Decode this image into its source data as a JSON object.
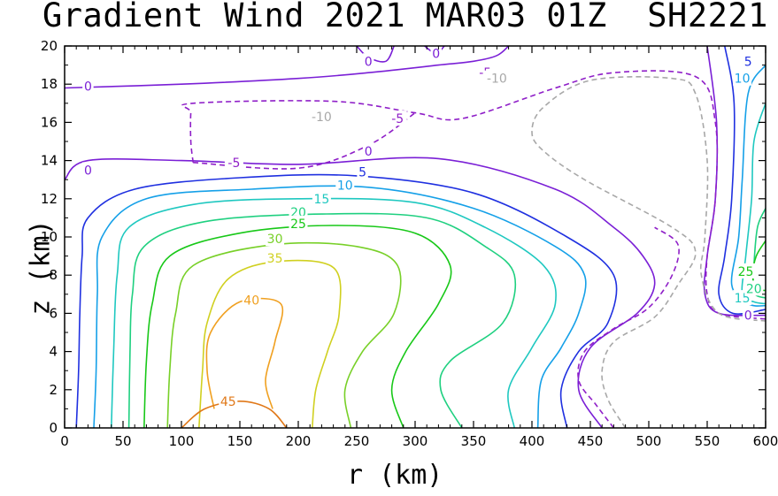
{
  "title": "Gradient Wind 2021 MAR03 01Z  SH2221",
  "chart_data": {
    "type": "contour",
    "title": "Gradient Wind 2021 MAR03 01Z  SH2221",
    "xlabel": "r (km)",
    "ylabel": "z (km)",
    "xlim": [
      0,
      600
    ],
    "ylim": [
      0,
      20
    ],
    "xticks": [
      "0",
      "50",
      "100",
      "150",
      "200",
      "250",
      "300",
      "350",
      "400",
      "450",
      "500",
      "550",
      "600"
    ],
    "yticks": [
      "0",
      "2",
      "4",
      "6",
      "8",
      "10",
      "12",
      "14",
      "16",
      "18",
      "20"
    ],
    "contours": [
      {
        "level": "0",
        "color": "#7a1fd6",
        "dashed": false,
        "points": [
          [
            0,
            13
          ],
          [
            20,
            14
          ],
          [
            100,
            14
          ],
          [
            200,
            13.8
          ],
          [
            320,
            14.1
          ],
          [
            420,
            12.5
          ],
          [
            470,
            10.5
          ],
          [
            495,
            9
          ],
          [
            505,
            7.5
          ],
          [
            490,
            6
          ],
          [
            450,
            4.2
          ],
          [
            440,
            2
          ],
          [
            460,
            0
          ]
        ]
      },
      {
        "level": "0",
        "color": "#7a1fd6",
        "dashed": false,
        "points": [
          [
            0,
            17.8
          ],
          [
            100,
            18
          ],
          [
            200,
            18.3
          ],
          [
            260,
            18.6
          ],
          [
            320,
            19
          ],
          [
            350,
            19.2
          ],
          [
            370,
            19.5
          ],
          [
            380,
            20
          ]
        ]
      },
      {
        "level": "0",
        "color": "#7a1fd6",
        "dashed": false,
        "points": [
          [
            550,
            20
          ],
          [
            558,
            16
          ],
          [
            557,
            12
          ],
          [
            550,
            9
          ],
          [
            548,
            7
          ],
          [
            560,
            6
          ],
          [
            600,
            5.9
          ]
        ]
      },
      {
        "level": "0",
        "color": "#7a1fd6",
        "dashed": false,
        "points": [
          [
            250,
            20
          ],
          [
            260,
            19.4
          ],
          [
            275,
            19.2
          ],
          [
            282,
            20
          ]
        ]
      },
      {
        "level": "0",
        "color": "#7a1fd6",
        "dashed": false,
        "points": [
          [
            308,
            20
          ],
          [
            318,
            19.6
          ],
          [
            325,
            20
          ]
        ]
      },
      {
        "level": "-5",
        "color": "#8f1fc8",
        "dashed": true,
        "points": [
          [
            110,
            13.9
          ],
          [
            108,
            15
          ],
          [
            108,
            16.5
          ],
          [
            110,
            17
          ],
          [
            230,
            17.1
          ],
          [
            300,
            16.5
          ],
          [
            340,
            16.2
          ],
          [
            420,
            17.8
          ],
          [
            470,
            18.6
          ],
          [
            540,
            18.4
          ],
          [
            557,
            16
          ],
          [
            557,
            12
          ],
          [
            550,
            9
          ],
          [
            550,
            7
          ],
          [
            560,
            6
          ],
          [
            600,
            5.7
          ]
        ]
      },
      {
        "level": "-5",
        "color": "#8f1fc8",
        "dashed": true,
        "points": [
          [
            110,
            13.9
          ],
          [
            200,
            13.6
          ],
          [
            260,
            14.8
          ],
          [
            300,
            16.5
          ]
        ]
      },
      {
        "level": "-5",
        "color": "#8f1fc8",
        "dashed": true,
        "points": [
          [
            470,
            0
          ],
          [
            455,
            1.2
          ],
          [
            440,
            2.5
          ],
          [
            445,
            4
          ],
          [
            470,
            5.2
          ],
          [
            500,
            6.3
          ],
          [
            520,
            8
          ],
          [
            525,
            9.6
          ],
          [
            505,
            10.5
          ]
        ]
      },
      {
        "level": "-10",
        "color": "#a8a8a8",
        "dashed": true,
        "points": [
          [
            480,
            0
          ],
          [
            465,
            1.5
          ],
          [
            460,
            3
          ],
          [
            470,
            4.5
          ],
          [
            505,
            5.8
          ],
          [
            525,
            7.5
          ],
          [
            540,
            9.2
          ],
          [
            520,
            10.5
          ],
          [
            445,
            13
          ],
          [
            410,
            14.5
          ],
          [
            400,
            15.5
          ],
          [
            410,
            16.8
          ],
          [
            450,
            18.2
          ],
          [
            520,
            18.3
          ],
          [
            540,
            17.5
          ],
          [
            550,
            14
          ],
          [
            548,
            10
          ],
          [
            545,
            8
          ],
          [
            560,
            6
          ],
          [
            600,
            5.6
          ]
        ]
      },
      {
        "level": "5",
        "color": "#1f30e0",
        "dashed": false,
        "points": [
          [
            10,
            0
          ],
          [
            12,
            3
          ],
          [
            13,
            6
          ],
          [
            15,
            9
          ],
          [
            20,
            11
          ],
          [
            60,
            12.5
          ],
          [
            150,
            13.1
          ],
          [
            250,
            13.2
          ],
          [
            350,
            12.3
          ],
          [
            430,
            10
          ],
          [
            470,
            8
          ],
          [
            465,
            5.5
          ],
          [
            440,
            4
          ],
          [
            425,
            2
          ],
          [
            430,
            0
          ]
        ]
      },
      {
        "level": "5",
        "color": "#1f30e0",
        "dashed": false,
        "points": [
          [
            565,
            20
          ],
          [
            573,
            17
          ],
          [
            571,
            12
          ],
          [
            565,
            9
          ],
          [
            560,
            7
          ],
          [
            572,
            6
          ],
          [
            600,
            6.2
          ]
        ]
      },
      {
        "level": "10",
        "color": "#15a0e8",
        "dashed": false,
        "points": [
          [
            25,
            0
          ],
          [
            27,
            3
          ],
          [
            28,
            7
          ],
          [
            32,
            10
          ],
          [
            70,
            12
          ],
          [
            160,
            12.5
          ],
          [
            260,
            12.6
          ],
          [
            350,
            11.5
          ],
          [
            420,
            9.5
          ],
          [
            445,
            8
          ],
          [
            440,
            6
          ],
          [
            425,
            4.2
          ],
          [
            408,
            2.5
          ],
          [
            405,
            0
          ]
        ]
      },
      {
        "level": "10",
        "color": "#15a0e8",
        "dashed": false,
        "points": [
          [
            600,
            19
          ],
          [
            585,
            17.5
          ],
          [
            580,
            13
          ],
          [
            577,
            10
          ],
          [
            571,
            7.5
          ],
          [
            585,
            6.5
          ],
          [
            600,
            6.4
          ]
        ]
      },
      {
        "level": "15",
        "color": "#1fc8c0",
        "dashed": false,
        "points": [
          [
            40,
            0
          ],
          [
            42,
            4
          ],
          [
            45,
            8
          ],
          [
            55,
            10.5
          ],
          [
            110,
            11.7
          ],
          [
            200,
            12
          ],
          [
            300,
            11.8
          ],
          [
            360,
            10.5
          ],
          [
            410,
            8.5
          ],
          [
            420,
            6.5
          ],
          [
            400,
            4.2
          ],
          [
            380,
            2
          ],
          [
            385,
            0
          ]
        ]
      },
      {
        "level": "15",
        "color": "#1fc8c0",
        "dashed": false,
        "points": [
          [
            600,
            17
          ],
          [
            590,
            15
          ],
          [
            588,
            12
          ],
          [
            583,
            9
          ],
          [
            580,
            7
          ],
          [
            590,
            6.6
          ],
          [
            600,
            6.5
          ]
        ]
      },
      {
        "level": "20",
        "color": "#1fd080",
        "dashed": false,
        "points": [
          [
            55,
            0
          ],
          [
            56,
            4
          ],
          [
            58,
            7
          ],
          [
            68,
            9.5
          ],
          [
            120,
            10.8
          ],
          [
            220,
            11.2
          ],
          [
            310,
            11
          ],
          [
            360,
            9.5
          ],
          [
            385,
            8
          ],
          [
            375,
            5.5
          ],
          [
            330,
            3.5
          ],
          [
            322,
            2
          ],
          [
            340,
            0
          ]
        ]
      },
      {
        "level": "20",
        "color": "#1fd080",
        "dashed": false,
        "points": [
          [
            600,
            11.5
          ],
          [
            593,
            10.5
          ],
          [
            590,
            8.5
          ],
          [
            590,
            7.1
          ],
          [
            600,
            6.8
          ]
        ]
      },
      {
        "level": "25",
        "color": "#18c818",
        "dashed": false,
        "points": [
          [
            68,
            0
          ],
          [
            70,
            3.5
          ],
          [
            75,
            6.5
          ],
          [
            90,
            9
          ],
          [
            150,
            10.2
          ],
          [
            230,
            10.6
          ],
          [
            300,
            10.2
          ],
          [
            330,
            8.5
          ],
          [
            320,
            6.5
          ],
          [
            292,
            4
          ],
          [
            280,
            2
          ],
          [
            290,
            0
          ]
        ]
      },
      {
        "level": "25",
        "color": "#18c818",
        "dashed": false,
        "points": [
          [
            600,
            9.8
          ],
          [
            592,
            9
          ],
          [
            589,
            8
          ],
          [
            592,
            7.3
          ],
          [
            600,
            7.2
          ]
        ]
      },
      {
        "level": "30",
        "color": "#78d028",
        "dashed": false,
        "points": [
          [
            88,
            0
          ],
          [
            90,
            3
          ],
          [
            95,
            6
          ],
          [
            110,
            8.5
          ],
          [
            180,
            9.6
          ],
          [
            250,
            9.5
          ],
          [
            285,
            8.5
          ],
          [
            282,
            6
          ],
          [
            255,
            4
          ],
          [
            240,
            2
          ],
          [
            245,
            0
          ]
        ]
      },
      {
        "level": "35",
        "color": "#d0d020",
        "dashed": false,
        "points": [
          [
            115,
            0
          ],
          [
            118,
            3
          ],
          [
            122,
            5.5
          ],
          [
            140,
            7.8
          ],
          [
            180,
            8.7
          ],
          [
            230,
            8.4
          ],
          [
            235,
            6
          ],
          [
            225,
            4
          ],
          [
            215,
            2
          ],
          [
            212,
            0
          ]
        ]
      },
      {
        "level": "40",
        "color": "#f0a020",
        "dashed": false,
        "points": [
          [
            128,
            1
          ],
          [
            122,
            3
          ],
          [
            125,
            5
          ],
          [
            150,
            6.6
          ],
          [
            185,
            6.5
          ],
          [
            180,
            4.5
          ],
          [
            172,
            2.5
          ],
          [
            178,
            1
          ]
        ]
      },
      {
        "level": "45",
        "color": "#e07818",
        "dashed": false,
        "points": [
          [
            100,
            0
          ],
          [
            120,
            1
          ],
          [
            150,
            1.4
          ],
          [
            175,
            1
          ],
          [
            190,
            0
          ]
        ]
      }
    ],
    "contour_labels": [
      {
        "text": "0",
        "x": 20,
        "y": 17.9,
        "color": "#7a1fd6"
      },
      {
        "text": "0",
        "x": 20,
        "y": 13.5,
        "color": "#7a1fd6"
      },
      {
        "text": "0",
        "x": 260,
        "y": 19.2,
        "color": "#7a1fd6"
      },
      {
        "text": "0",
        "x": 318,
        "y": 19.6,
        "color": "#7a1fd6"
      },
      {
        "text": "0",
        "x": 260,
        "y": 14.5,
        "color": "#7a1fd6"
      },
      {
        "text": "0",
        "x": 585,
        "y": 5.9,
        "color": "#7a1fd6"
      },
      {
        "text": "-5",
        "x": 360,
        "y": 18.6,
        "color": "#8f1fc8"
      },
      {
        "text": "-5",
        "x": 285,
        "y": 16.2,
        "color": "#8f1fc8"
      },
      {
        "text": "-5",
        "x": 145,
        "y": 13.9,
        "color": "#8f1fc8"
      },
      {
        "text": "-10",
        "x": 370,
        "y": 18.3,
        "color": "#a8a8a8"
      },
      {
        "text": "-10",
        "x": 220,
        "y": 16.3,
        "color": "#a8a8a8"
      },
      {
        "text": "5",
        "x": 255,
        "y": 13.4,
        "color": "#1f30e0"
      },
      {
        "text": "5",
        "x": 585,
        "y": 19.2,
        "color": "#1f30e0"
      },
      {
        "text": "10",
        "x": 240,
        "y": 12.7,
        "color": "#15a0e8"
      },
      {
        "text": "10",
        "x": 580,
        "y": 18.3,
        "color": "#15a0e8"
      },
      {
        "text": "15",
        "x": 220,
        "y": 12.0,
        "color": "#1fc8c0"
      },
      {
        "text": "15",
        "x": 580,
        "y": 6.8,
        "color": "#1fc8c0"
      },
      {
        "text": "20",
        "x": 200,
        "y": 11.3,
        "color": "#1fd080"
      },
      {
        "text": "20",
        "x": 590,
        "y": 7.3,
        "color": "#1fd080"
      },
      {
        "text": "25",
        "x": 200,
        "y": 10.7,
        "color": "#18c818"
      },
      {
        "text": "25",
        "x": 583,
        "y": 8.2,
        "color": "#18c818"
      },
      {
        "text": "30",
        "x": 180,
        "y": 9.9,
        "color": "#78d028"
      },
      {
        "text": "35",
        "x": 180,
        "y": 8.9,
        "color": "#d0d020"
      },
      {
        "text": "40",
        "x": 160,
        "y": 6.7,
        "color": "#f0a020"
      },
      {
        "text": "45",
        "x": 140,
        "y": 1.4,
        "color": "#e07818"
      }
    ]
  }
}
